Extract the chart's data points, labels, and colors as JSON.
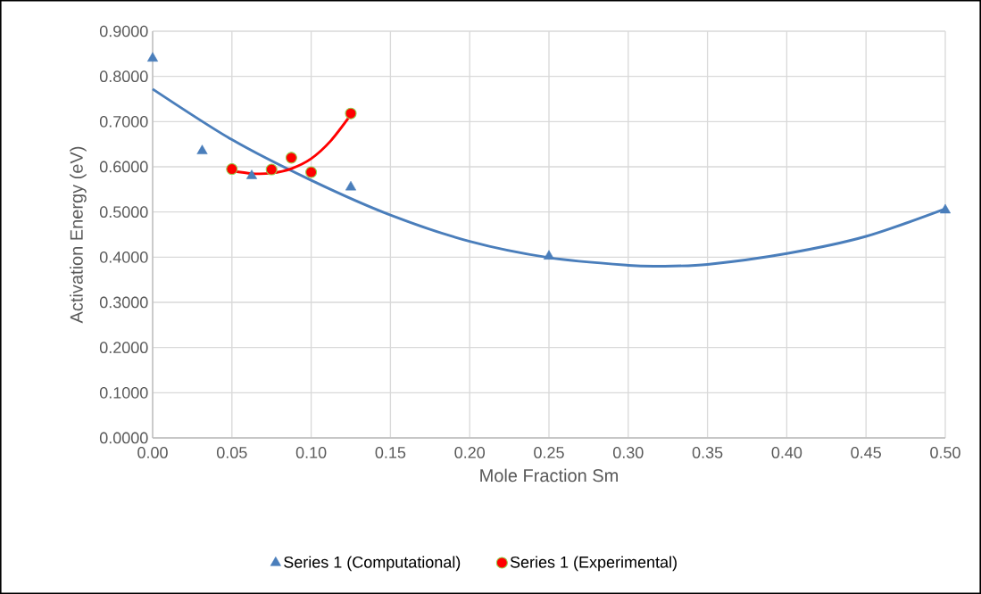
{
  "chart_data": {
    "type": "scatter",
    "xlabel": "Mole Fraction Sm",
    "ylabel": "Activation Energy (eV)",
    "xlim": [
      0,
      0.5
    ],
    "ylim": [
      0,
      0.9
    ],
    "xticks": [
      {
        "value": 0,
        "label": "0.00"
      },
      {
        "value": 0.05,
        "label": "0.05"
      },
      {
        "value": 0.1,
        "label": "0.10"
      },
      {
        "value": 0.15,
        "label": "0.15"
      },
      {
        "value": 0.2,
        "label": "0.20"
      },
      {
        "value": 0.25,
        "label": "0.25"
      },
      {
        "value": 0.3,
        "label": "0.30"
      },
      {
        "value": 0.35,
        "label": "0.35"
      },
      {
        "value": 0.4,
        "label": "0.40"
      },
      {
        "value": 0.45,
        "label": "0.45"
      },
      {
        "value": 0.5,
        "label": "0.50"
      }
    ],
    "yticks": [
      {
        "value": 0,
        "label": "0.0000"
      },
      {
        "value": 0.1,
        "label": "0.1000"
      },
      {
        "value": 0.2,
        "label": "0.2000"
      },
      {
        "value": 0.3,
        "label": "0.3000"
      },
      {
        "value": 0.4,
        "label": "0.4000"
      },
      {
        "value": 0.5,
        "label": "0.5000"
      },
      {
        "value": 0.6,
        "label": "0.6000"
      },
      {
        "value": 0.7,
        "label": "0.7000"
      },
      {
        "value": 0.8,
        "label": "0.8000"
      },
      {
        "value": 0.9,
        "label": "0.9000"
      }
    ],
    "grid": true,
    "legend": "bottom",
    "series": [
      {
        "type": "line",
        "color": "#4a7ebb",
        "marker": "none",
        "x": [
          0,
          0.05,
          0.1,
          0.15,
          0.2,
          0.25,
          0.3,
          0.32,
          0.35,
          0.4,
          0.45,
          0.5
        ],
        "values": [
          0.772,
          0.66,
          0.57,
          0.493,
          0.435,
          0.399,
          0.382,
          0.38,
          0.384,
          0.408,
          0.446,
          0.507
        ]
      },
      {
        "type": "line",
        "color": "#ff0000",
        "marker": "none",
        "x": [
          0.05,
          0.0625,
          0.075,
          0.0875,
          0.1,
          0.1125,
          0.125
        ],
        "values": [
          0.591,
          0.585,
          0.586,
          0.596,
          0.618,
          0.658,
          0.715
        ]
      },
      {
        "name": "Series 1 (Computational)",
        "color": "#4a7ebb",
        "marker": "triangle",
        "x": [
          0,
          0.03125,
          0.0625,
          0.125,
          0.25,
          0.5
        ],
        "values": [
          0.84,
          0.635,
          0.58,
          0.555,
          0.402,
          0.504
        ]
      },
      {
        "name": "Series 1 (Experimental)",
        "color": "#ff0000",
        "marker": "circle",
        "x": [
          0.05,
          0.075,
          0.0875,
          0.1,
          0.125
        ],
        "values": [
          0.595,
          0.594,
          0.62,
          0.588,
          0.718
        ]
      }
    ]
  }
}
